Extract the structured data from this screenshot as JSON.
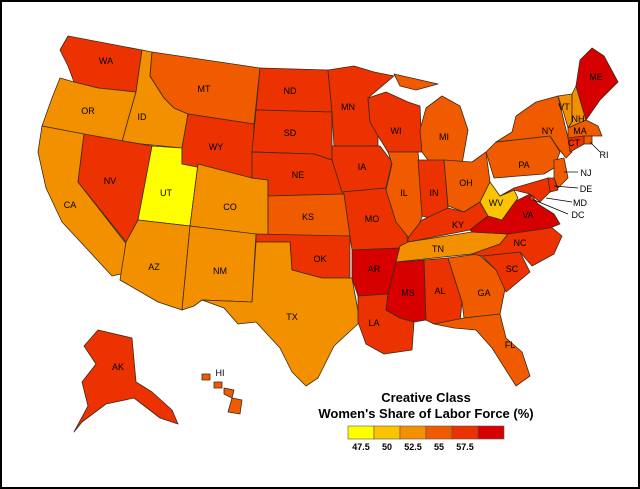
{
  "legend": {
    "title_line1": "Creative Class",
    "title_line2": "Women's Share of Labor Force (%)",
    "bins": [
      {
        "color": "#ffff00",
        "label": "47.5"
      },
      {
        "color": "#fbc400",
        "label": "50"
      },
      {
        "color": "#f39000",
        "label": "52.5"
      },
      {
        "color": "#f05b00",
        "label": "55"
      },
      {
        "color": "#eb3200",
        "label": "57.5"
      },
      {
        "color": "#d60000",
        "label": ""
      }
    ]
  },
  "chart_data": {
    "type": "choropleth",
    "title": "Creative Class Women's Share of Labor Force (%)",
    "bin_thresholds": [
      47.5,
      50,
      52.5,
      55,
      57.5
    ],
    "states": [
      {
        "abbr": "WA",
        "bin": 4
      },
      {
        "abbr": "OR",
        "bin": 2
      },
      {
        "abbr": "CA",
        "bin": 2
      },
      {
        "abbr": "ID",
        "bin": 2
      },
      {
        "abbr": "NV",
        "bin": 4
      },
      {
        "abbr": "UT",
        "bin": 0
      },
      {
        "abbr": "AZ",
        "bin": 2
      },
      {
        "abbr": "MT",
        "bin": 3
      },
      {
        "abbr": "WY",
        "bin": 4
      },
      {
        "abbr": "CO",
        "bin": 2
      },
      {
        "abbr": "NM",
        "bin": 2
      },
      {
        "abbr": "ND",
        "bin": 4
      },
      {
        "abbr": "SD",
        "bin": 4
      },
      {
        "abbr": "NE",
        "bin": 4
      },
      {
        "abbr": "KS",
        "bin": 3
      },
      {
        "abbr": "OK",
        "bin": 4
      },
      {
        "abbr": "TX",
        "bin": 2
      },
      {
        "abbr": "MN",
        "bin": 4
      },
      {
        "abbr": "IA",
        "bin": 4
      },
      {
        "abbr": "MO",
        "bin": 4
      },
      {
        "abbr": "AR",
        "bin": 5
      },
      {
        "abbr": "LA",
        "bin": 4
      },
      {
        "abbr": "WI",
        "bin": 4
      },
      {
        "abbr": "IL",
        "bin": 3
      },
      {
        "abbr": "MI",
        "bin": 3
      },
      {
        "abbr": "IN",
        "bin": 4
      },
      {
        "abbr": "OH",
        "bin": 3
      },
      {
        "abbr": "KY",
        "bin": 4
      },
      {
        "abbr": "TN",
        "bin": 2
      },
      {
        "abbr": "MS",
        "bin": 5
      },
      {
        "abbr": "AL",
        "bin": 4
      },
      {
        "abbr": "GA",
        "bin": 3
      },
      {
        "abbr": "FL",
        "bin": 3
      },
      {
        "abbr": "SC",
        "bin": 4
      },
      {
        "abbr": "NC",
        "bin": 4
      },
      {
        "abbr": "VA",
        "bin": 5
      },
      {
        "abbr": "WV",
        "bin": 1
      },
      {
        "abbr": "PA",
        "bin": 3
      },
      {
        "abbr": "NY",
        "bin": 3
      },
      {
        "abbr": "VT",
        "bin": 2
      },
      {
        "abbr": "NH",
        "bin": 2
      },
      {
        "abbr": "ME",
        "bin": 5
      },
      {
        "abbr": "MA",
        "bin": 3
      },
      {
        "abbr": "RI",
        "bin": 3
      },
      {
        "abbr": "CT",
        "bin": 4
      },
      {
        "abbr": "NJ",
        "bin": 3
      },
      {
        "abbr": "DE",
        "bin": 4
      },
      {
        "abbr": "MD",
        "bin": 4
      },
      {
        "abbr": "DC",
        "bin": 4
      },
      {
        "abbr": "AK",
        "bin": 4
      },
      {
        "abbr": "HI",
        "bin": 3
      }
    ]
  }
}
